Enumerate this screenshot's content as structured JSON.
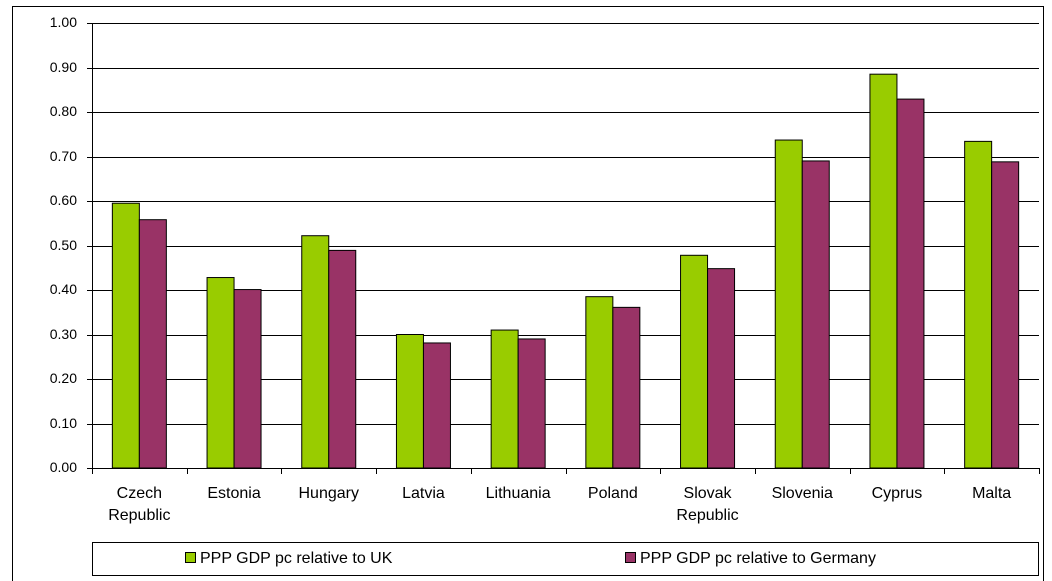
{
  "chart_data": {
    "type": "bar",
    "categories": [
      "Czech Republic",
      "Estonia",
      "Hungary",
      "Latvia",
      "Lithuania",
      "Poland",
      "Slovak Republic",
      "Slovenia",
      "Cyprus",
      "Malta"
    ],
    "series": [
      {
        "name": "PPP GDP pc relative to UK",
        "color": "#99cc00",
        "values": [
          0.595,
          0.428,
          0.522,
          0.3,
          0.31,
          0.385,
          0.478,
          0.737,
          0.885,
          0.734
        ]
      },
      {
        "name": "PPP GDP pc relative to Germany",
        "color": "#993366",
        "values": [
          0.558,
          0.401,
          0.489,
          0.281,
          0.29,
          0.361,
          0.448,
          0.69,
          0.829,
          0.688
        ]
      }
    ],
    "ylim": [
      0,
      1
    ],
    "yticks": [
      {
        "value": 0,
        "label": "0.00"
      },
      {
        "value": 0.1,
        "label": "0.10"
      },
      {
        "value": 0.2,
        "label": "0.20"
      },
      {
        "value": 0.3,
        "label": "0.30"
      },
      {
        "value": 0.4,
        "label": "0.40"
      },
      {
        "value": 0.5,
        "label": "0.50"
      },
      {
        "value": 0.6,
        "label": "0.60"
      },
      {
        "value": 0.7,
        "label": "0.70"
      },
      {
        "value": 0.8,
        "label": "0.80"
      },
      {
        "value": 0.9,
        "label": "0.90"
      },
      {
        "value": 1,
        "label": "1.00"
      }
    ],
    "grid": true
  }
}
